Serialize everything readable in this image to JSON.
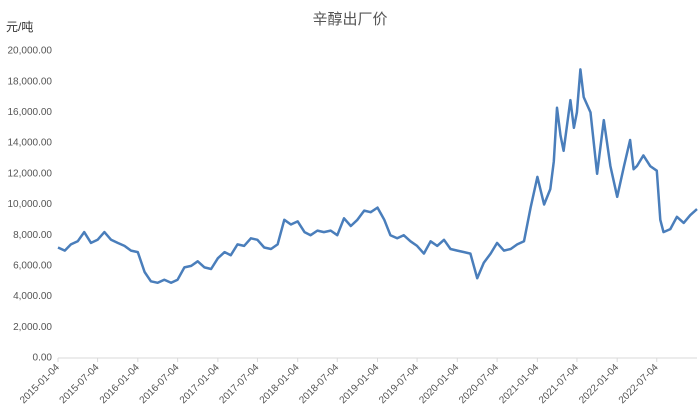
{
  "chart_data": {
    "type": "line",
    "title": "辛醇出厂价",
    "ylabel": "元/吨",
    "color": "#4a7ebb",
    "x": [
      "2015-01-04",
      "2015-02-04",
      "2015-03-04",
      "2015-04-04",
      "2015-05-04",
      "2015-06-04",
      "2015-07-04",
      "2015-08-04",
      "2015-09-04",
      "2015-10-04",
      "2015-11-04",
      "2015-12-04",
      "2016-01-04",
      "2016-02-04",
      "2016-03-04",
      "2016-04-04",
      "2016-05-04",
      "2016-06-04",
      "2016-07-04",
      "2016-08-04",
      "2016-09-04",
      "2016-10-04",
      "2016-11-04",
      "2016-12-04",
      "2017-01-04",
      "2017-02-04",
      "2017-03-04",
      "2017-04-04",
      "2017-05-04",
      "2017-06-04",
      "2017-07-04",
      "2017-08-04",
      "2017-09-04",
      "2017-10-04",
      "2017-11-04",
      "2017-12-04",
      "2018-01-04",
      "2018-02-04",
      "2018-03-04",
      "2018-04-04",
      "2018-05-04",
      "2018-06-04",
      "2018-07-04",
      "2018-08-04",
      "2018-09-04",
      "2018-10-04",
      "2018-11-04",
      "2018-12-04",
      "2019-01-04",
      "2019-02-04",
      "2019-03-04",
      "2019-04-04",
      "2019-05-04",
      "2019-06-04",
      "2019-07-04",
      "2019-08-04",
      "2019-09-04",
      "2019-10-04",
      "2019-11-04",
      "2019-12-04",
      "2020-01-04",
      "2020-02-04",
      "2020-03-04",
      "2020-04-04",
      "2020-05-04",
      "2020-06-04",
      "2020-07-04",
      "2020-08-04",
      "2020-09-04",
      "2020-10-04",
      "2020-11-04",
      "2020-12-04",
      "2021-01-04",
      "2021-02-04",
      "2021-03-04",
      "2021-03-20",
      "2021-04-04",
      "2021-04-20",
      "2021-05-04",
      "2021-06-04",
      "2021-06-20",
      "2021-07-04",
      "2021-07-20",
      "2021-08-04",
      "2021-09-04",
      "2021-10-04",
      "2021-11-04",
      "2021-12-04",
      "2022-01-04",
      "2022-02-04",
      "2022-03-04",
      "2022-03-20",
      "2022-04-04",
      "2022-05-04",
      "2022-06-04",
      "2022-07-04",
      "2022-07-20",
      "2022-08-04",
      "2022-09-04",
      "2022-10-04",
      "2022-11-04",
      "2022-12-04",
      "2023-01-04"
    ],
    "values": [
      7200,
      7000,
      7400,
      7600,
      8200,
      7500,
      7700,
      8200,
      7700,
      7500,
      7300,
      7000,
      6900,
      5600,
      5000,
      4900,
      5100,
      4900,
      5100,
      5900,
      6000,
      6300,
      5900,
      5800,
      6500,
      6900,
      6700,
      7400,
      7300,
      7800,
      7700,
      7200,
      7100,
      7400,
      9000,
      8700,
      8900,
      8200,
      8000,
      8300,
      8200,
      8300,
      8000,
      9100,
      8600,
      9000,
      9600,
      9500,
      9800,
      9000,
      8000,
      7800,
      8000,
      7600,
      7300,
      6800,
      7600,
      7300,
      7700,
      7100,
      7000,
      6900,
      6800,
      5200,
      6200,
      6800,
      7500,
      7000,
      7100,
      7400,
      7600,
      9800,
      11800,
      10000,
      11000,
      12800,
      16300,
      14500,
      13500,
      16800,
      15000,
      16000,
      18800,
      17000,
      16000,
      12000,
      15500,
      12500,
      10500,
      12500,
      14200,
      12300,
      12500,
      13200,
      12500,
      12200,
      9000,
      8200,
      8400,
      9200,
      8800,
      9300,
      9700
    ],
    "xlim": [
      "2015-01-04",
      "2023-01-04"
    ],
    "xticks": [
      "2015-01-04",
      "2015-07-04",
      "2016-01-04",
      "2016-07-04",
      "2017-01-04",
      "2017-07-04",
      "2018-01-04",
      "2018-07-04",
      "2019-01-04",
      "2019-07-04",
      "2020-01-04",
      "2020-07-04",
      "2021-01-04",
      "2021-07-04",
      "2022-01-04",
      "2022-07-04"
    ],
    "ylim": [
      0,
      20000
    ],
    "yticks": [
      {
        "value": 0,
        "label": "0.00"
      },
      {
        "value": 2000,
        "label": "2,000.00"
      },
      {
        "value": 4000,
        "label": "4,000.00"
      },
      {
        "value": 6000,
        "label": "6,000.00"
      },
      {
        "value": 8000,
        "label": "8,000.00"
      },
      {
        "value": 10000,
        "label": "10,000.00"
      },
      {
        "value": 12000,
        "label": "12,000.00"
      },
      {
        "value": 14000,
        "label": "14,000.00"
      },
      {
        "value": 16000,
        "label": "16,000.00"
      },
      {
        "value": 18000,
        "label": "18,000.00"
      },
      {
        "value": 20000,
        "label": "20,000.00"
      }
    ]
  }
}
